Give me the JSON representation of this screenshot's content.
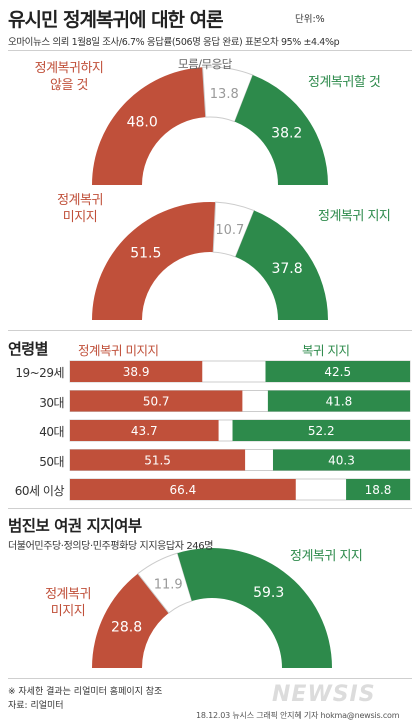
{
  "header": {
    "title": "유시민 정계복귀에 대한 여론",
    "unit": "단위:%",
    "subtitle": "오마이뉴스 의뢰 1월8일 조사/6.7% 응답률(506명 응답 완료) 표본오차 95% ±4.4%p"
  },
  "colors": {
    "red": "#c0503a",
    "green": "#2d8a4b",
    "gray": "#ffffff"
  },
  "chart_data": [
    {
      "type": "pie",
      "slices": [
        {
          "label": "정계복귀하지 않을 것",
          "value": 48.0,
          "color": "#c0503a"
        },
        {
          "label": "모름/무응답",
          "value": 13.8,
          "color": "#ffffff"
        },
        {
          "label": "정계복귀할 것",
          "value": 38.2,
          "color": "#2d8a4b"
        }
      ]
    },
    {
      "type": "pie",
      "slices": [
        {
          "label": "정계복귀 미지지",
          "value": 51.5,
          "color": "#c0503a"
        },
        {
          "label": "",
          "value": 10.7,
          "color": "#ffffff"
        },
        {
          "label": "정계복귀 지지",
          "value": 37.8,
          "color": "#2d8a4b"
        }
      ]
    },
    {
      "type": "bar",
      "title": "연령별",
      "categories": [
        "19~29세",
        "30대",
        "40대",
        "50대",
        "60세 이상"
      ],
      "series": [
        {
          "name": "정계복귀 미지지",
          "values": [
            38.9,
            50.7,
            43.7,
            51.5,
            66.4
          ],
          "color": "#c0503a"
        },
        {
          "name": "복귀 지지",
          "values": [
            42.5,
            41.8,
            52.2,
            40.3,
            18.8
          ],
          "color": "#2d8a4b"
        }
      ]
    },
    {
      "type": "pie",
      "title": "범진보 여권 지지여부",
      "subtitle": "더불어민주당·정의당·민주평화당 지지응답자 246명",
      "slices": [
        {
          "label": "정계복귀 미지지",
          "value": 28.8,
          "color": "#c0503a"
        },
        {
          "label": "",
          "value": 11.9,
          "color": "#ffffff"
        },
        {
          "label": "정계복귀 지지",
          "value": 59.3,
          "color": "#2d8a4b"
        }
      ]
    }
  ],
  "gauge_labels": {
    "g1_red_line1": "정계복귀하지",
    "g1_red_line2": "않을 것",
    "g1_gray": "모름/무응답",
    "g1_green": "정계복귀할 것",
    "g2_red_line1": "정계복귀",
    "g2_red_line2": "미지지",
    "g2_green": "정계복귀 지지",
    "g3_red_line1": "정계복귀",
    "g3_red_line2": "미지지",
    "g3_green": "정계복귀 지지"
  },
  "age_labels": {
    "heading": "연령별",
    "legend_red": "정계복귀 미지지",
    "legend_green": "복귀 지지"
  },
  "coalition": {
    "heading": "범진보 여권 지지여부",
    "sub": "더불어민주당·정의당·민주평화당 지지응답자 246명"
  },
  "footer": {
    "note": "※ 자세한 결과는 리얼미터 홈페이지 참조",
    "source": "자료: 리얼미터",
    "credit": "18.12.03 뉴시스 그래픽 안지혜 기자 hokma@newsis.com",
    "logo": "NEWSIS"
  }
}
